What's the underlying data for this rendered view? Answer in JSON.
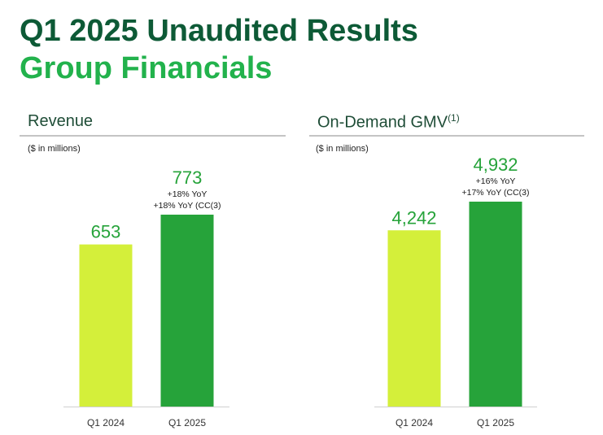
{
  "title": {
    "line1": "Q1 2025 Unaudited Results",
    "line2": "Group Financials"
  },
  "colors": {
    "dark_green": "#0d5a36",
    "bright_green": "#22b24c",
    "lime": "#d4ef3a",
    "bar_green": "#26a33a"
  },
  "chart_data": [
    {
      "type": "bar",
      "title": "Revenue",
      "unit_label": "($ in millions)",
      "categories": [
        "Q1 2024",
        "Q1 2025"
      ],
      "values": [
        653,
        773
      ],
      "value_labels": [
        "653",
        "773"
      ],
      "bar_colors": [
        "#d4ef3a",
        "#26a33a"
      ],
      "annotations": [
        {
          "category": "Q1 2025",
          "lines": [
            "+18% YoY",
            "+18% YoY (CC(3)"
          ]
        }
      ]
    },
    {
      "type": "bar",
      "title": "On-Demand GMV",
      "title_superscript": "(1)",
      "unit_label": "($ in millions)",
      "categories": [
        "Q1 2024",
        "Q1 2025"
      ],
      "values": [
        4242,
        4932
      ],
      "value_labels": [
        "4,242",
        "4,932"
      ],
      "bar_colors": [
        "#d4ef3a",
        "#26a33a"
      ],
      "annotations": [
        {
          "category": "Q1 2025",
          "lines": [
            "+16% YoY",
            "+17% YoY (CC(3)"
          ]
        }
      ]
    }
  ]
}
